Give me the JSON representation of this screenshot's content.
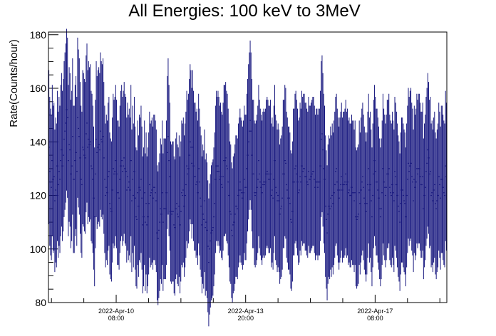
{
  "chart_data": {
    "type": "scatter",
    "title": "All Energies:  100 keV to 3MeV",
    "xlabel": "",
    "ylabel": "Rate(Counts/hour)",
    "ylim": [
      80,
      181
    ],
    "yticks": [
      80,
      100,
      120,
      140,
      160,
      180
    ],
    "x_ticks": [
      {
        "date": "2022-Apr-10",
        "time": "08:00",
        "frac": 0.17
      },
      {
        "date": "2022-Apr-13",
        "time": "20:00",
        "frac": 0.495
      },
      {
        "date": "2022-Apr-17",
        "time": "08:00",
        "frac": 0.82
      }
    ],
    "grid": false,
    "colors": {
      "series": "#1a1a80",
      "frame": "#000000"
    },
    "series": [
      {
        "values": [
          138,
          129,
          125,
          123,
          133,
          126,
          127,
          118,
          122,
          120,
          131,
          124,
          129,
          126,
          133,
          137,
          131,
          135,
          141,
          144,
          147,
          152,
          149,
          133,
          139,
          137,
          128,
          131,
          142,
          126,
          126,
          133,
          136,
          129,
          149,
          145,
          142,
          134,
          126,
          124,
          138,
          137,
          135,
          134,
          143,
          147,
          138,
          141,
          139,
          140,
          131,
          130,
          126,
          119,
          112,
          128,
          141,
          136,
          138,
          139,
          137,
          144,
          141,
          140,
          142,
          134,
          126,
          120,
          123,
          121,
          127,
          129,
          117,
          115,
          114,
          122,
          130,
          128,
          129,
          133,
          128,
          121,
          121,
          119,
          126,
          131,
          133,
          129,
          131,
          134,
          130,
          129,
          122,
          127,
          123,
          125,
          122,
          133,
          118,
          126,
          120,
          129,
          119,
          112,
          111,
          121,
          116,
          123,
          122,
          126,
          119,
          109,
          112,
          121,
          110,
          117,
          109,
          112,
          117,
          124,
          120,
          121,
          122,
          119,
          123,
          123,
          121,
          118,
          106,
          104,
          107,
          110,
          115,
          113,
          121,
          110,
          115,
          115,
          115,
          121,
          136,
          142,
          133,
          127,
          114,
          113,
          114,
          114,
          109,
          108,
          115,
          117,
          113,
          112,
          116,
          109,
          114,
          121,
          120,
          122,
          116,
          120,
          124,
          131,
          128,
          130,
          135,
          140,
          138,
          132,
          138,
          131,
          127,
          127,
          124,
          125,
          121,
          130,
          125,
          119,
          116,
          109,
          113,
          111,
          118,
          108,
          110,
          107,
          101,
          95,
          100,
          103,
          106,
          107,
          108,
          112,
          117,
          126,
          131,
          129,
          131,
          129,
          126,
          127,
          124,
          123,
          127,
          133,
          133,
          134,
          131,
          130,
          125,
          120,
          114,
          113,
          107,
          105,
          109,
          110,
          113,
          116,
          116,
          115,
          120,
          122,
          125,
          122,
          121,
          119,
          121,
          126,
          123,
          123,
          130,
          135,
          140,
          144,
          148,
          144,
          135,
          128,
          128,
          121,
          120,
          121,
          123,
          126,
          133,
          128,
          125,
          123,
          121,
          124,
          125,
          124,
          125,
          128,
          129,
          128,
          126,
          126,
          128,
          120,
          122,
          119,
          126,
          133,
          123,
          121,
          118,
          120,
          118,
          113,
          115,
          116,
          119,
          128,
          128,
          133,
          132,
          124,
          122,
          119,
          119,
          117,
          111,
          110,
          114,
          125,
          125,
          130,
          131,
          128,
          125,
          121,
          122,
          127,
          125,
          131,
          129,
          130,
          130,
          127,
          127,
          125,
          124,
          129,
          126,
          126,
          127,
          128,
          129,
          129,
          126,
          123,
          125,
          125,
          123,
          125,
          125,
          131,
          141,
          143,
          137,
          130,
          126,
          116,
          111,
          106,
          113,
          116,
          115,
          119,
          116,
          120,
          117,
          121,
          124,
          129,
          130,
          125,
          122,
          119,
          122,
          124,
          127,
          122,
          124,
          124,
          125,
          128,
          124,
          125,
          121,
          122,
          120,
          120,
          123,
          121,
          121,
          118,
          121,
          112,
          111,
          112,
          113,
          121,
          117,
          122,
          125,
          127,
          123,
          119,
          117,
          114,
          117,
          124,
          130,
          122,
          124,
          118,
          112,
          120,
          128,
          133,
          129,
          125,
          125,
          122,
          119,
          115,
          112,
          115,
          121,
          130,
          125,
          123,
          120,
          123,
          128,
          128,
          130,
          123,
          121,
          120,
          124,
          121,
          118,
          129,
          127,
          124,
          120,
          116,
          114,
          110,
          117,
          122,
          122,
          120,
          118,
          117,
          112,
          120,
          126,
          132,
          129,
          131,
          132,
          127,
          125,
          118,
          126,
          123,
          125,
          130,
          128,
          130,
          130,
          127,
          124,
          124,
          127,
          115,
          120,
          123,
          129,
          132,
          137,
          134,
          128,
          129,
          120,
          121,
          118,
          122,
          124,
          117,
          115,
          118,
          120,
          127,
          124,
          119,
          126,
          126,
          123,
          121,
          120,
          131,
          127
        ]
      }
    ]
  }
}
